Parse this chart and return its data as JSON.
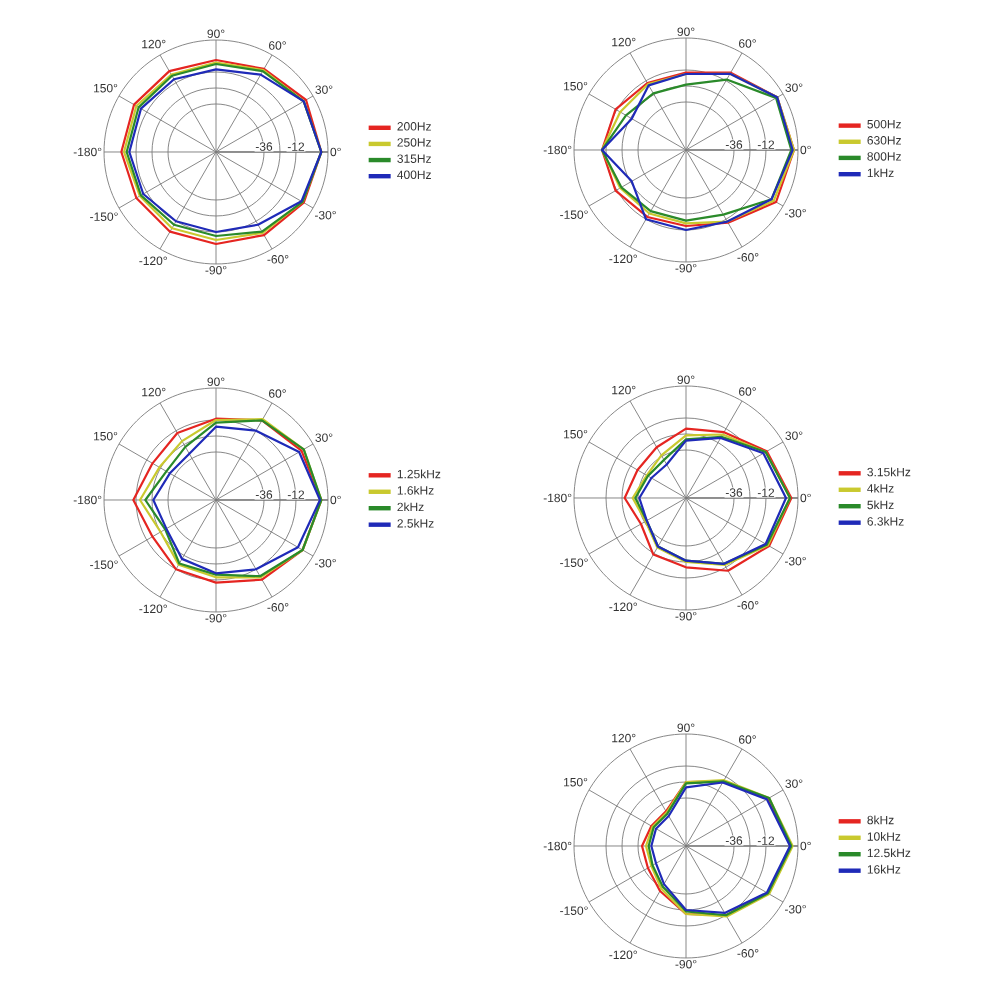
{
  "chart_data": [
    {
      "type": "radar",
      "categories": [
        "90°",
        "60°",
        "30°",
        "0°",
        "-30°",
        "-60°",
        "-90°",
        "-120°",
        "-150°",
        "-180°",
        "150°",
        "120°"
      ],
      "series": [
        {
          "name": "200Hz",
          "color": "#e52521",
          "values": [
            -3,
            0,
            6,
            7,
            4,
            0,
            -3,
            -3,
            -3,
            -1,
            -1,
            -2
          ]
        },
        {
          "name": "250Hz",
          "color": "#c9c92e",
          "values": [
            -5,
            -1,
            4,
            7,
            3,
            -2,
            -6,
            -6,
            -6,
            -3,
            -3,
            -5
          ]
        },
        {
          "name": "315Hz",
          "color": "#2a8a2a",
          "values": [
            -6,
            -2,
            4,
            7,
            3,
            -3,
            -9,
            -9,
            -7,
            -5,
            -5,
            -6
          ]
        },
        {
          "name": "400Hz",
          "color": "#1f2ab8",
          "values": [
            -10,
            -5,
            4,
            7,
            2,
            -9,
            -12,
            -12,
            -9,
            -7,
            -7,
            -9
          ]
        }
      ],
      "ylim": [
        -72,
        12
      ],
      "yticks": [
        -36,
        -12
      ],
      "grid": true,
      "legend": "right"
    },
    {
      "type": "radar",
      "categories": [
        "90°",
        "60°",
        "30°",
        "0°",
        "-30°",
        "-60°",
        "-90°",
        "-120°",
        "-150°",
        "-180°",
        "150°",
        "120°"
      ],
      "series": [
        {
          "name": "500Hz",
          "color": "#e52521",
          "values": [
            -14,
            -5,
            7,
            9,
            6,
            -9,
            -15,
            -14,
            -11,
            -9,
            -11,
            -14
          ]
        },
        {
          "name": "630Hz",
          "color": "#c9c92e",
          "values": [
            -15,
            -6,
            7,
            9,
            4,
            -10,
            -17,
            -17,
            -15,
            -9,
            -15,
            -15
          ]
        },
        {
          "name": "800Hz",
          "color": "#2a8a2a",
          "values": [
            -23,
            -11,
            6,
            7,
            2,
            -16,
            -19,
            -19,
            -16,
            -9,
            -20,
            -23
          ]
        },
        {
          "name": "1kHz",
          "color": "#1f2ab8",
          "values": [
            -15,
            -6,
            7,
            8,
            2,
            -10,
            -12,
            -12,
            -25,
            -9,
            -25,
            -16
          ]
        }
      ],
      "ylim": [
        -72,
        12
      ],
      "yticks": [
        -36,
        -12
      ],
      "grid": true,
      "legend": "right"
    },
    {
      "type": "radar",
      "categories": [
        "90°",
        "60°",
        "30°",
        "0°",
        "-30°",
        "-60°",
        "-90°",
        "-120°",
        "-150°",
        "-180°",
        "150°",
        "120°"
      ],
      "series": [
        {
          "name": "1.25kHz",
          "color": "#e52521",
          "values": [
            -11,
            -3,
            2,
            7,
            3,
            -3,
            -10,
            -12,
            -17,
            -10,
            -17,
            -14
          ]
        },
        {
          "name": "1.6kHz",
          "color": "#c9c92e",
          "values": [
            -12,
            -2,
            4,
            7,
            3,
            -5,
            -14,
            -16,
            -24,
            -15,
            -23,
            -21
          ]
        },
        {
          "name": "2kHz",
          "color": "#2a8a2a",
          "values": [
            -14,
            -3,
            4,
            7,
            3,
            -6,
            -16,
            -17,
            -28,
            -19,
            -29,
            -26
          ]
        },
        {
          "name": "2.5kHz",
          "color": "#1f2ab8",
          "values": [
            -17,
            -12,
            0,
            6,
            -1,
            -12,
            -17,
            -21,
            -29,
            -25,
            -32,
            -32
          ]
        }
      ],
      "ylim": [
        -72,
        12
      ],
      "yticks": [
        -36,
        -12
      ],
      "grid": true,
      "legend": "right"
    },
    {
      "type": "radar",
      "categories": [
        "90°",
        "60°",
        "30°",
        "0°",
        "-30°",
        "-60°",
        "-90°",
        "-120°",
        "-150°",
        "-180°",
        "150°",
        "120°"
      ],
      "series": [
        {
          "name": "3.15kHz",
          "color": "#e52521",
          "values": [
            -20,
            -15,
            -2,
            7,
            0,
            -9,
            -20,
            -23,
            -33,
            -26,
            -30,
            -28
          ]
        },
        {
          "name": "4kHz",
          "color": "#c9c92e",
          "values": [
            -25,
            -17,
            -3,
            6,
            -1,
            -14,
            -24,
            -29,
            -37,
            -32,
            -38,
            -35
          ]
        },
        {
          "name": "5kHz",
          "color": "#2a8a2a",
          "values": [
            -28,
            -19,
            -3,
            6,
            -2,
            -15,
            -25,
            -30,
            -38,
            -34,
            -39,
            -39
          ]
        },
        {
          "name": "6.3kHz",
          "color": "#1f2ab8",
          "values": [
            -29,
            -20,
            -5,
            3,
            -3,
            -15,
            -25,
            -30,
            -38,
            -37,
            -42,
            -43
          ]
        }
      ],
      "ylim": [
        -72,
        12
      ],
      "yticks": [
        -36,
        -12
      ],
      "grid": true,
      "legend": "right"
    },
    {
      "type": "radar",
      "categories": [
        "90°",
        "60°",
        "30°",
        "0°",
        "-30°",
        "-60°",
        "-90°",
        "-120°",
        "-150°",
        "-180°",
        "150°",
        "120°"
      ],
      "series": [
        {
          "name": "8kHz",
          "color": "#e52521",
          "values": [
            -24,
            -16,
            -1,
            7,
            -1,
            -12,
            -21,
            -33,
            -39,
            -39,
            -42,
            -42
          ]
        },
        {
          "name": "10kHz",
          "color": "#c9c92e",
          "values": [
            -24,
            -15,
            0,
            8,
            0,
            -11,
            -21,
            -35,
            -42,
            -42,
            -43,
            -43
          ]
        },
        {
          "name": "12.5kHz",
          "color": "#2a8a2a",
          "values": [
            -25,
            -16,
            0,
            7,
            -1,
            -12,
            -23,
            -37,
            -43,
            -44,
            -44,
            -44
          ]
        },
        {
          "name": "16kHz",
          "color": "#1f2ab8",
          "values": [
            -28,
            -17,
            -2,
            6,
            -2,
            -14,
            -24,
            -39,
            -46,
            -46,
            -46,
            -46
          ]
        }
      ],
      "ylim": [
        -72,
        12
      ],
      "yticks": [
        -36,
        -12
      ],
      "grid": true,
      "legend": "right"
    }
  ]
}
